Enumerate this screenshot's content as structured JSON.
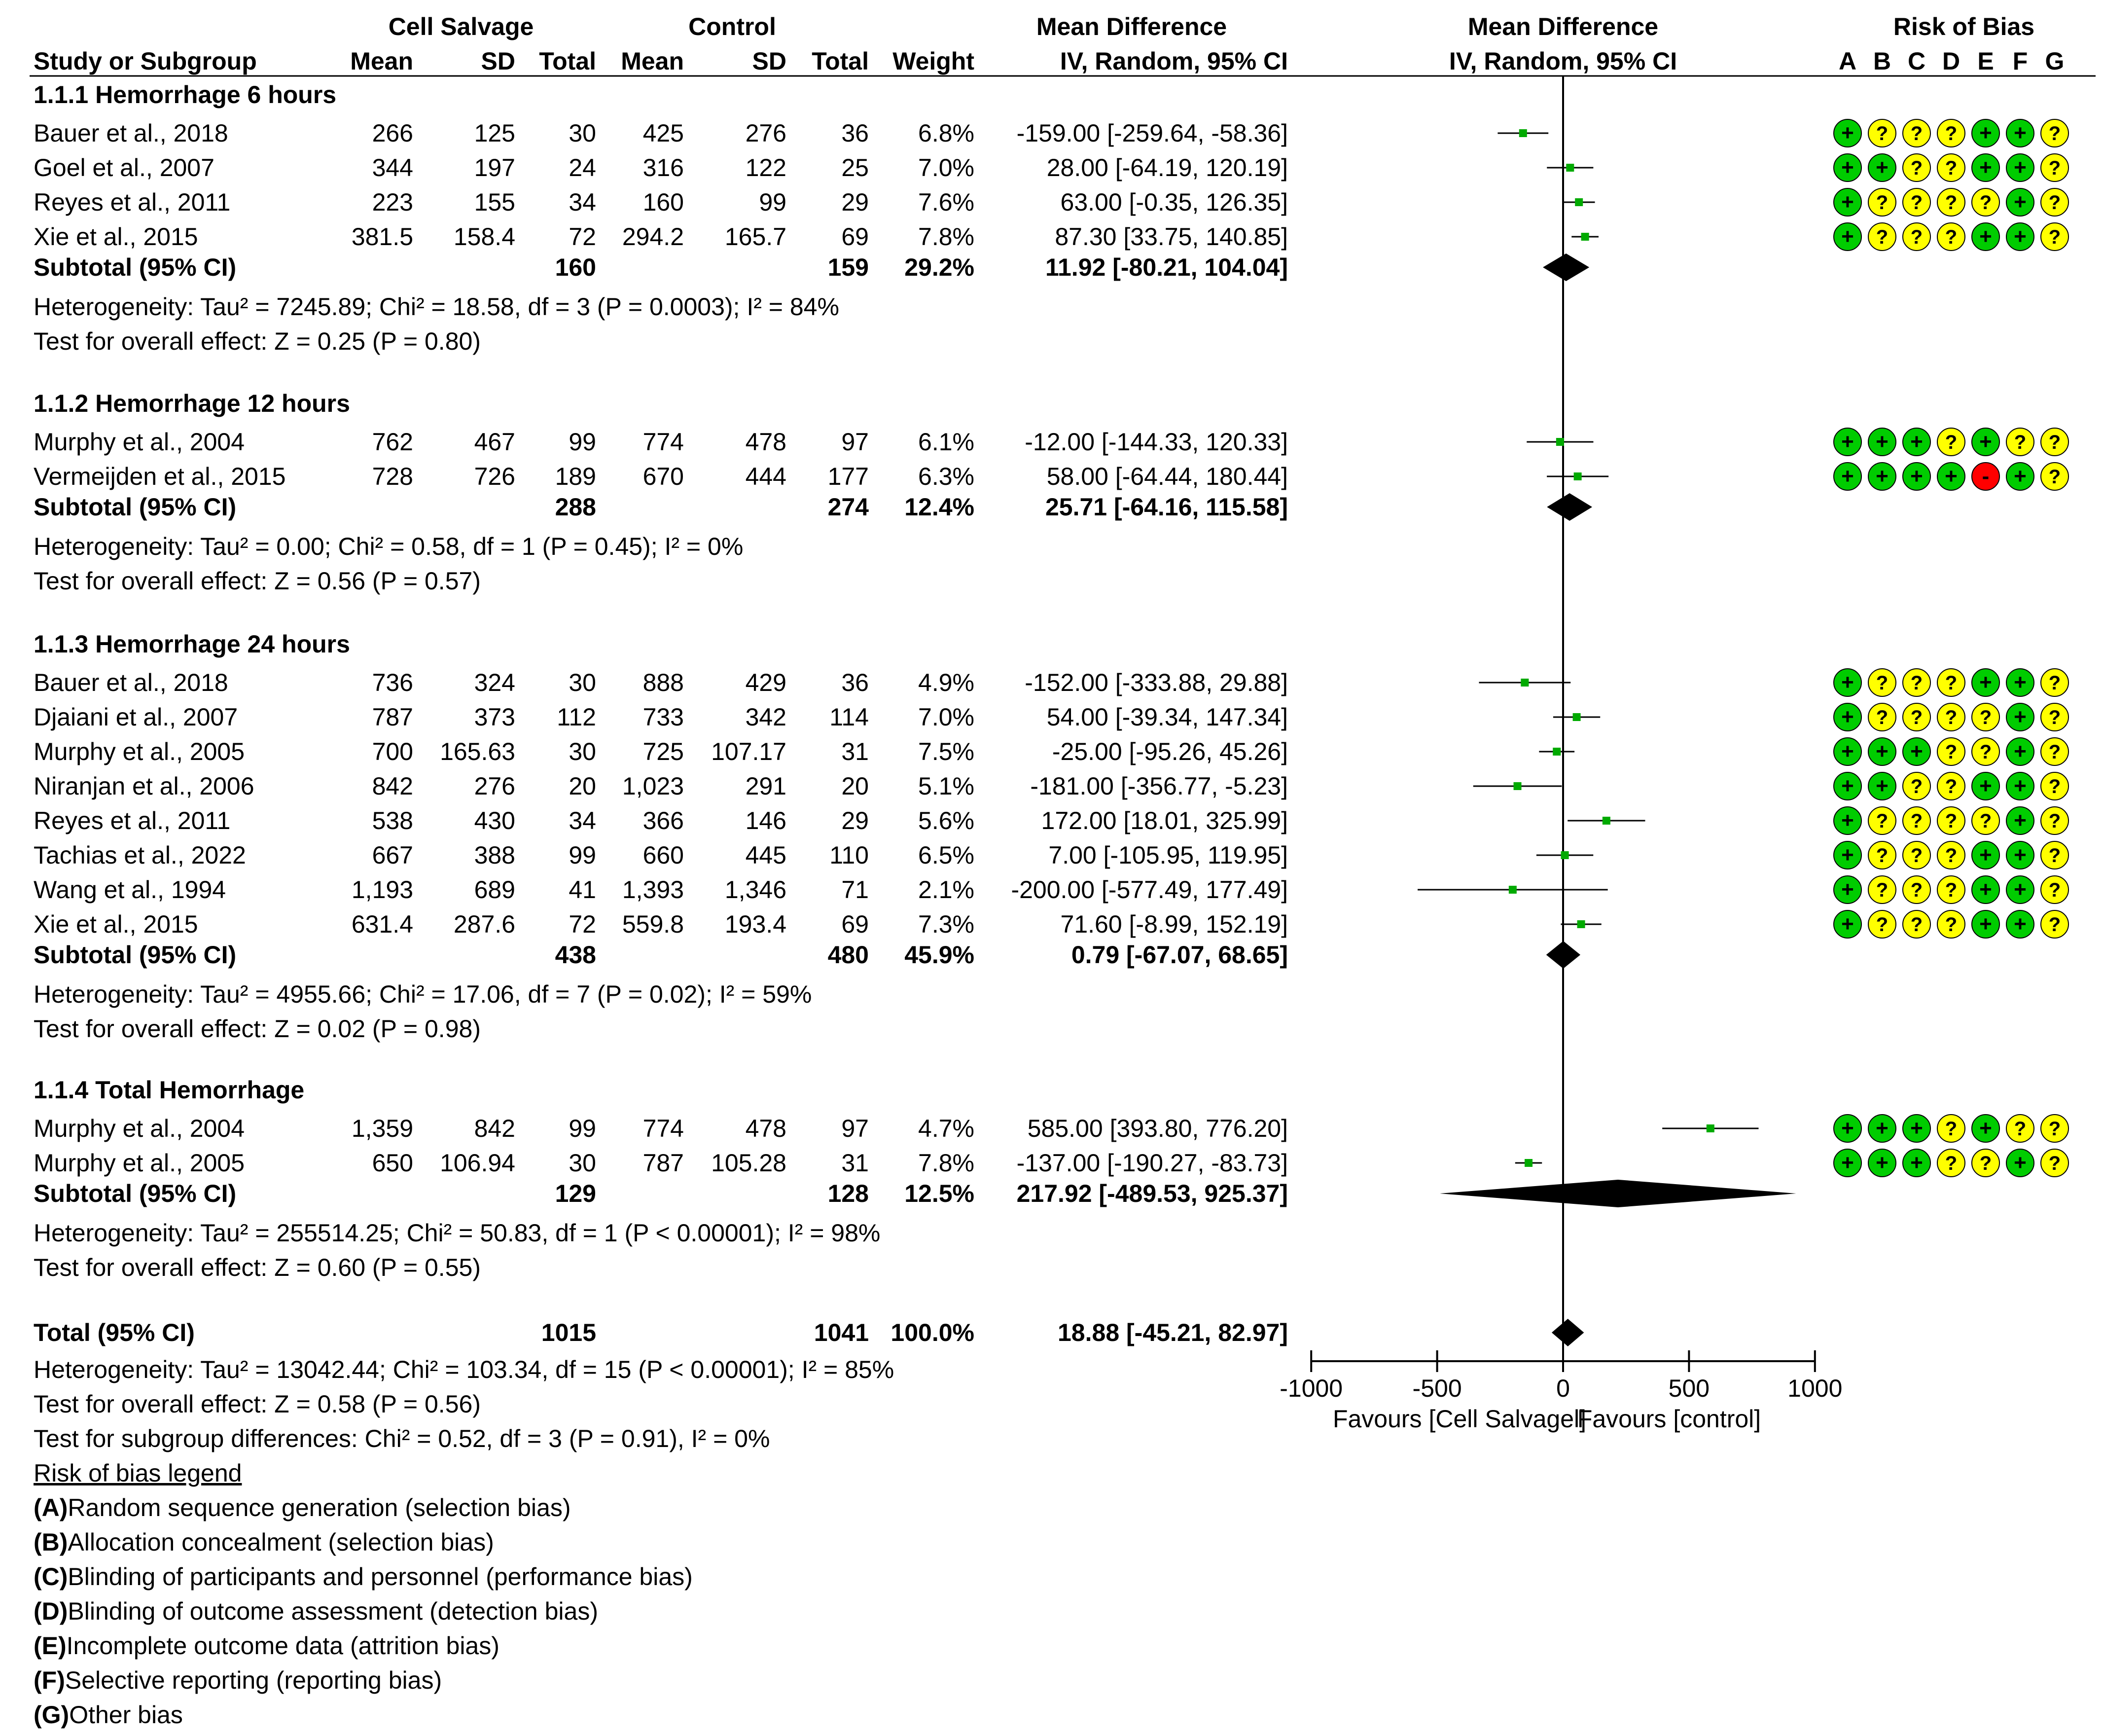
{
  "header": {
    "group_exp": "Cell Salvage",
    "group_ctl": "Control",
    "md_col_title": "Mean Difference",
    "md_col_sub": "IV, Random, 95% CI",
    "plot_title": "Mean Difference",
    "plot_sub": "IV, Random, 95% CI",
    "rob_title": "Risk of Bias",
    "study_col": "Study or Subgroup",
    "mean": "Mean",
    "sd": "SD",
    "total": "Total",
    "weight": "Weight",
    "rob_letters": [
      "A",
      "B",
      "C",
      "D",
      "E",
      "F",
      "G"
    ]
  },
  "colors": {
    "low": "#00cc00",
    "unclear": "#ffff00",
    "high": "#ff0000",
    "point": "#00aa00"
  },
  "chart_data": {
    "type": "forest",
    "title": "Mean Difference IV, Random, 95% CI",
    "xlim": [
      -1000,
      1000
    ],
    "xticks": [
      -1000,
      -500,
      0,
      500,
      1000
    ],
    "xtick_labels": [
      "-1000",
      "-500",
      "0",
      "500",
      "1000"
    ],
    "xlabel_left": "Favours [Cell Salvagel]",
    "xlabel_right": "Favours [control]",
    "subgroups": [
      {
        "title": "1.1.1 Hemorrhage 6 hours",
        "studies": [
          {
            "name": "Bauer et al., 2018",
            "m1": "266",
            "sd1": "125",
            "n1": "30",
            "m2": "425",
            "sd2": "276",
            "n2": "36",
            "weight": "6.8%",
            "ci_text": "-159.00 [-259.64, -58.36]",
            "md": -159.0,
            "lo": -259.64,
            "hi": -58.36,
            "rob": [
              "+",
              "?",
              "?",
              "?",
              "+",
              "+",
              "?"
            ]
          },
          {
            "name": "Goel et al., 2007",
            "m1": "344",
            "sd1": "197",
            "n1": "24",
            "m2": "316",
            "sd2": "122",
            "n2": "25",
            "weight": "7.0%",
            "ci_text": "28.00 [-64.19, 120.19]",
            "md": 28.0,
            "lo": -64.19,
            "hi": 120.19,
            "rob": [
              "+",
              "+",
              "?",
              "?",
              "+",
              "+",
              "?"
            ]
          },
          {
            "name": "Reyes et al., 2011",
            "m1": "223",
            "sd1": "155",
            "n1": "34",
            "m2": "160",
            "sd2": "99",
            "n2": "29",
            "weight": "7.6%",
            "ci_text": "63.00 [-0.35, 126.35]",
            "md": 63.0,
            "lo": -0.35,
            "hi": 126.35,
            "rob": [
              "+",
              "?",
              "?",
              "?",
              "?",
              "+",
              "?"
            ]
          },
          {
            "name": "Xie et al., 2015",
            "m1": "381.5",
            "sd1": "158.4",
            "n1": "72",
            "m2": "294.2",
            "sd2": "165.7",
            "n2": "69",
            "weight": "7.8%",
            "ci_text": "87.30 [33.75, 140.85]",
            "md": 87.3,
            "lo": 33.75,
            "hi": 140.85,
            "rob": [
              "+",
              "?",
              "?",
              "?",
              "+",
              "+",
              "?"
            ]
          }
        ],
        "subtotal": {
          "label": "Subtotal (95% CI)",
          "n1": "160",
          "n2": "159",
          "weight": "29.2%",
          "ci_text": "11.92 [-80.21, 104.04]",
          "md": 11.92,
          "lo": -80.21,
          "hi": 104.04
        },
        "heterogeneity": "Heterogeneity: Tau² = 7245.89; Chi² = 18.58, df = 3 (P = 0.0003); I² = 84%",
        "overall": "Test for overall effect: Z = 0.25 (P = 0.80)"
      },
      {
        "title": "1.1.2 Hemorrhage 12 hours",
        "studies": [
          {
            "name": "Murphy et al., 2004",
            "m1": "762",
            "sd1": "467",
            "n1": "99",
            "m2": "774",
            "sd2": "478",
            "n2": "97",
            "weight": "6.1%",
            "ci_text": "-12.00 [-144.33, 120.33]",
            "md": -12.0,
            "lo": -144.33,
            "hi": 120.33,
            "rob": [
              "+",
              "+",
              "+",
              "?",
              "+",
              "?",
              "?"
            ]
          },
          {
            "name": "Vermeijden et al., 2015",
            "m1": "728",
            "sd1": "726",
            "n1": "189",
            "m2": "670",
            "sd2": "444",
            "n2": "177",
            "weight": "6.3%",
            "ci_text": "58.00 [-64.44, 180.44]",
            "md": 58.0,
            "lo": -64.44,
            "hi": 180.44,
            "rob": [
              "+",
              "+",
              "+",
              "+",
              "-",
              "+",
              "?"
            ]
          }
        ],
        "subtotal": {
          "label": "Subtotal (95% CI)",
          "n1": "288",
          "n2": "274",
          "weight": "12.4%",
          "ci_text": "25.71 [-64.16, 115.58]",
          "md": 25.71,
          "lo": -64.16,
          "hi": 115.58
        },
        "heterogeneity": "Heterogeneity: Tau² = 0.00; Chi² = 0.58, df = 1 (P = 0.45); I² = 0%",
        "overall": "Test for overall effect: Z = 0.56 (P = 0.57)"
      },
      {
        "title": "1.1.3 Hemorrhage 24 hours",
        "studies": [
          {
            "name": "Bauer et al., 2018",
            "m1": "736",
            "sd1": "324",
            "n1": "30",
            "m2": "888",
            "sd2": "429",
            "n2": "36",
            "weight": "4.9%",
            "ci_text": "-152.00 [-333.88, 29.88]",
            "md": -152.0,
            "lo": -333.88,
            "hi": 29.88,
            "rob": [
              "+",
              "?",
              "?",
              "?",
              "+",
              "+",
              "?"
            ]
          },
          {
            "name": "Djaiani et al., 2007",
            "m1": "787",
            "sd1": "373",
            "n1": "112",
            "m2": "733",
            "sd2": "342",
            "n2": "114",
            "weight": "7.0%",
            "ci_text": "54.00 [-39.34, 147.34]",
            "md": 54.0,
            "lo": -39.34,
            "hi": 147.34,
            "rob": [
              "+",
              "?",
              "?",
              "?",
              "?",
              "+",
              "?"
            ]
          },
          {
            "name": "Murphy et al., 2005",
            "m1": "700",
            "sd1": "165.63",
            "n1": "30",
            "m2": "725",
            "sd2": "107.17",
            "n2": "31",
            "weight": "7.5%",
            "ci_text": "-25.00 [-95.26, 45.26]",
            "md": -25.0,
            "lo": -95.26,
            "hi": 45.26,
            "rob": [
              "+",
              "+",
              "+",
              "?",
              "?",
              "+",
              "?"
            ]
          },
          {
            "name": "Niranjan et al., 2006",
            "m1": "842",
            "sd1": "276",
            "n1": "20",
            "m2": "1,023",
            "sd2": "291",
            "n2": "20",
            "weight": "5.1%",
            "ci_text": "-181.00 [-356.77, -5.23]",
            "md": -181.0,
            "lo": -356.77,
            "hi": -5.23,
            "rob": [
              "+",
              "+",
              "?",
              "?",
              "+",
              "+",
              "?"
            ]
          },
          {
            "name": "Reyes et al., 2011",
            "m1": "538",
            "sd1": "430",
            "n1": "34",
            "m2": "366",
            "sd2": "146",
            "n2": "29",
            "weight": "5.6%",
            "ci_text": "172.00 [18.01, 325.99]",
            "md": 172.0,
            "lo": 18.01,
            "hi": 325.99,
            "rob": [
              "+",
              "?",
              "?",
              "?",
              "?",
              "+",
              "?"
            ]
          },
          {
            "name": "Tachias et al., 2022",
            "m1": "667",
            "sd1": "388",
            "n1": "99",
            "m2": "660",
            "sd2": "445",
            "n2": "110",
            "weight": "6.5%",
            "ci_text": "7.00 [-105.95, 119.95]",
            "md": 7.0,
            "lo": -105.95,
            "hi": 119.95,
            "rob": [
              "+",
              "?",
              "?",
              "?",
              "+",
              "+",
              "?"
            ]
          },
          {
            "name": "Wang et al., 1994",
            "m1": "1,193",
            "sd1": "689",
            "n1": "41",
            "m2": "1,393",
            "sd2": "1,346",
            "n2": "71",
            "weight": "2.1%",
            "ci_text": "-200.00 [-577.49, 177.49]",
            "md": -200.0,
            "lo": -577.49,
            "hi": 177.49,
            "rob": [
              "+",
              "?",
              "?",
              "?",
              "+",
              "+",
              "?"
            ]
          },
          {
            "name": "Xie et al., 2015",
            "m1": "631.4",
            "sd1": "287.6",
            "n1": "72",
            "m2": "559.8",
            "sd2": "193.4",
            "n2": "69",
            "weight": "7.3%",
            "ci_text": "71.60 [-8.99, 152.19]",
            "md": 71.6,
            "lo": -8.99,
            "hi": 152.19,
            "rob": [
              "+",
              "?",
              "?",
              "?",
              "+",
              "+",
              "?"
            ]
          }
        ],
        "subtotal": {
          "label": "Subtotal (95% CI)",
          "n1": "438",
          "n2": "480",
          "weight": "45.9%",
          "ci_text": "0.79 [-67.07, 68.65]",
          "md": 0.79,
          "lo": -67.07,
          "hi": 68.65
        },
        "heterogeneity": "Heterogeneity: Tau² = 4955.66; Chi² = 17.06, df = 7 (P = 0.02); I² = 59%",
        "overall": "Test for overall effect: Z = 0.02 (P = 0.98)"
      },
      {
        "title": "1.1.4 Total Hemorrhage",
        "studies": [
          {
            "name": "Murphy et al., 2004",
            "m1": "1,359",
            "sd1": "842",
            "n1": "99",
            "m2": "774",
            "sd2": "478",
            "n2": "97",
            "weight": "4.7%",
            "ci_text": "585.00 [393.80, 776.20]",
            "md": 585.0,
            "lo": 393.8,
            "hi": 776.2,
            "rob": [
              "+",
              "+",
              "+",
              "?",
              "+",
              "?",
              "?"
            ]
          },
          {
            "name": "Murphy et al., 2005",
            "m1": "650",
            "sd1": "106.94",
            "n1": "30",
            "m2": "787",
            "sd2": "105.28",
            "n2": "31",
            "weight": "7.8%",
            "ci_text": "-137.00 [-190.27, -83.73]",
            "md": -137.0,
            "lo": -190.27,
            "hi": -83.73,
            "rob": [
              "+",
              "+",
              "+",
              "?",
              "?",
              "+",
              "?"
            ]
          }
        ],
        "subtotal": {
          "label": "Subtotal (95% CI)",
          "n1": "129",
          "n2": "128",
          "weight": "12.5%",
          "ci_text": "217.92 [-489.53, 925.37]",
          "md": 217.92,
          "lo": -489.53,
          "hi": 925.37
        },
        "heterogeneity": "Heterogeneity: Tau² = 255514.25; Chi² = 50.83, df = 1 (P < 0.00001); I² = 98%",
        "overall": "Test for overall effect: Z = 0.60 (P = 0.55)"
      }
    ],
    "total": {
      "label": "Total (95% CI)",
      "n1": "1015",
      "n2": "1041",
      "weight": "100.0%",
      "ci_text": "18.88 [-45.21, 82.97]",
      "md": 18.88,
      "lo": -45.21,
      "hi": 82.97
    },
    "total_heterogeneity": "Heterogeneity: Tau² = 13042.44; Chi² = 103.34, df = 15 (P < 0.00001); I² = 85%",
    "total_overall": "Test for overall effect: Z = 0.58 (P = 0.56)",
    "subgroup_diff": "Test for subgroup differences: Chi² = 0.52, df = 3 (P = 0.91), I² = 0%"
  },
  "legend": {
    "title": "Risk of bias legend",
    "items": [
      {
        "key": "(A)",
        "text": " Random sequence generation (selection bias)"
      },
      {
        "key": "(B)",
        "text": " Allocation concealment (selection bias)"
      },
      {
        "key": "(C)",
        "text": " Blinding of participants and personnel (performance bias)"
      },
      {
        "key": "(D)",
        "text": " Blinding of outcome assessment (detection bias)"
      },
      {
        "key": "(E)",
        "text": " Incomplete outcome data (attrition bias)"
      },
      {
        "key": "(F)",
        "text": " Selective reporting (reporting bias)"
      },
      {
        "key": "(G)",
        "text": " Other bias"
      }
    ]
  }
}
